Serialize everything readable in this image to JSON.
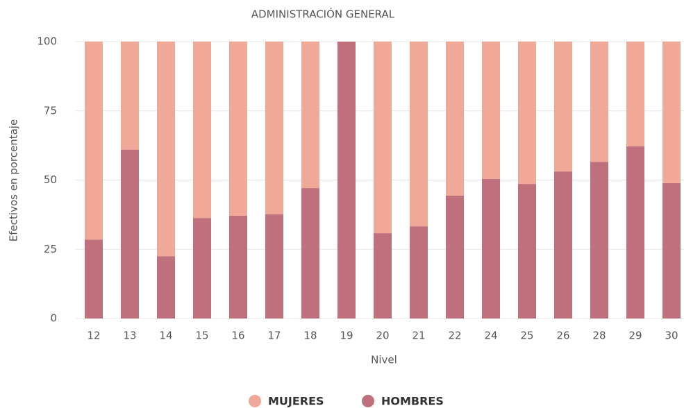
{
  "chart_data": {
    "type": "stacked_bar",
    "title": "ADMINISTRACIÓN GENERAL",
    "y_label": "Efectivos en porcentaje",
    "x_label": "Nivel",
    "categories": [
      "12",
      "13",
      "14",
      "15",
      "16",
      "17",
      "18",
      "19",
      "20",
      "21",
      "22",
      "24",
      "25",
      "26",
      "28",
      "29",
      "30"
    ],
    "series": [
      {
        "name": "MUJERES",
        "color": "#f0a898",
        "values": [
          71.5,
          39,
          77.5,
          63.7,
          62.9,
          62.4,
          52.9,
          0,
          69.2,
          66.7,
          55.6,
          49.6,
          51.4,
          46.9,
          43.4,
          37.8,
          51.1
        ]
      },
      {
        "name": "HOMBRES",
        "color": "#c0707c",
        "values": [
          28.5,
          61,
          22.5,
          36.3,
          37.1,
          37.6,
          47.1,
          100,
          30.8,
          33.3,
          44.4,
          50.4,
          48.6,
          53.1,
          56.6,
          62.2,
          48.9
        ]
      }
    ],
    "ylim": [
      0,
      100
    ],
    "yticks": [
      0,
      25,
      50,
      75,
      100
    ],
    "grid": true
  }
}
